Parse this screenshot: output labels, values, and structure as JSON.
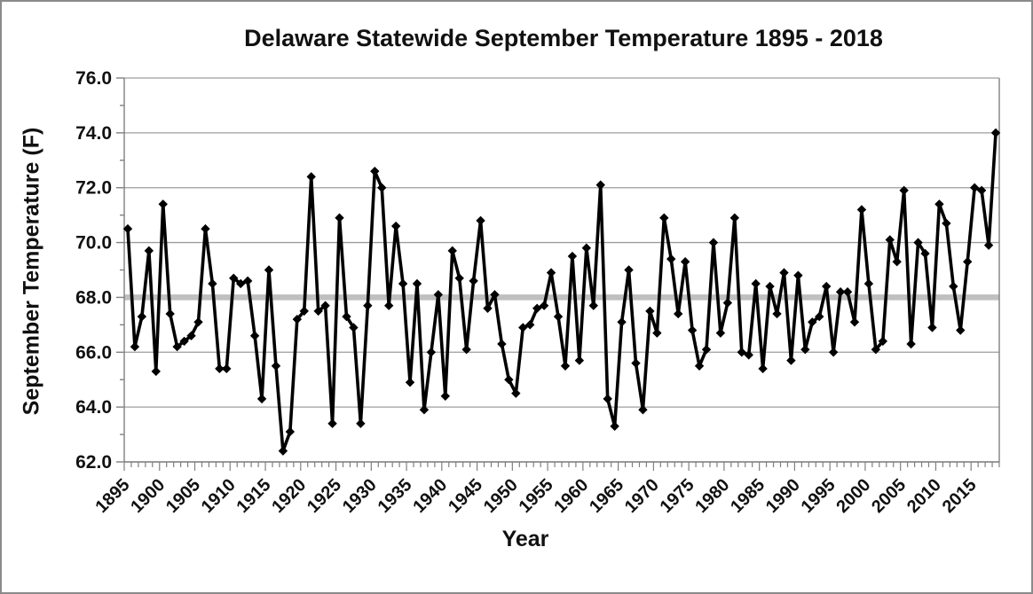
{
  "chart_data": {
    "type": "line",
    "title": "Delaware Statewide September Temperature 1895 - 2018",
    "xlabel": "Year",
    "ylabel": "September Temperature (F)",
    "year_start": 1895,
    "year_end": 2018,
    "values": [
      70.5,
      66.2,
      67.3,
      69.7,
      65.3,
      71.4,
      67.4,
      66.2,
      66.4,
      66.6,
      67.1,
      70.5,
      68.5,
      65.4,
      65.4,
      68.7,
      68.5,
      68.6,
      66.6,
      64.3,
      69.0,
      65.5,
      62.4,
      63.1,
      67.2,
      67.5,
      72.4,
      67.5,
      67.7,
      63.4,
      70.9,
      67.3,
      66.9,
      63.4,
      67.7,
      72.6,
      72.0,
      67.7,
      70.6,
      68.5,
      64.9,
      68.5,
      63.9,
      66.0,
      68.1,
      64.4,
      69.7,
      68.7,
      66.1,
      68.6,
      70.8,
      67.6,
      68.1,
      66.3,
      65.0,
      64.5,
      66.9,
      67.0,
      67.6,
      67.7,
      68.9,
      67.3,
      65.5,
      69.5,
      65.7,
      69.8,
      67.7,
      72.1,
      64.3,
      63.3,
      67.1,
      69.0,
      65.6,
      63.9,
      67.5,
      66.7,
      70.9,
      69.4,
      67.4,
      69.3,
      66.8,
      65.5,
      66.1,
      70.0,
      66.7,
      67.8,
      70.9,
      66.0,
      65.9,
      68.5,
      65.4,
      68.4,
      67.4,
      68.9,
      65.7,
      68.8,
      66.1,
      67.1,
      67.3,
      68.4,
      66.0,
      68.2,
      68.2,
      67.1,
      71.2,
      68.5,
      66.1,
      66.4,
      70.1,
      69.3,
      71.9,
      66.3,
      70.0,
      69.6,
      66.9,
      71.4,
      70.7,
      68.4,
      66.8,
      69.3,
      72.0,
      71.9,
      69.9,
      74.0
    ],
    "mean_line": {
      "value": 68.0
    },
    "ylim": [
      62.0,
      76.0
    ],
    "y_tick_step": 2.0,
    "y_tick_labels": [
      "76.0",
      "74.0",
      "72.0",
      "70.0",
      "68.0",
      "66.0",
      "64.0",
      "62.0"
    ],
    "x_tick_labels": [
      "1895",
      "1900",
      "1905",
      "1910",
      "1915",
      "1920",
      "1925",
      "1930",
      "1935",
      "1940",
      "1945",
      "1950",
      "1955",
      "1960",
      "1965",
      "1970",
      "1975",
      "1980",
      "1985",
      "1990",
      "1995",
      "2000",
      "2005",
      "2010",
      "2015"
    ],
    "x_label_step_years": 5,
    "grid": "horizontal",
    "legend": "none",
    "marker": "diamond",
    "colors": {
      "series": "#000000",
      "mean_line": "#bfbfbf",
      "gridline": "#9d9d9d",
      "axis": "#808080",
      "text": "#111111",
      "background": "#ffffff",
      "border": "#8a8a8a"
    }
  }
}
